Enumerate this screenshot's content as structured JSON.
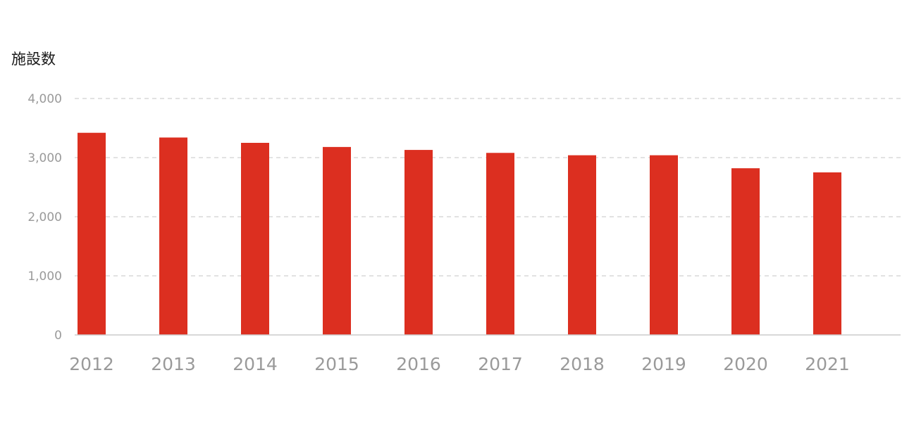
{
  "chart_data": {
    "type": "bar",
    "ylabel": "施設数",
    "xlabel": "",
    "title": "",
    "categories": [
      "2012",
      "2013",
      "2014",
      "2015",
      "2016",
      "2017",
      "2018",
      "2019",
      "2020",
      "2021"
    ],
    "series": [
      {
        "values": [
          3420,
          3340,
          3250,
          3180,
          3130,
          3080,
          3040,
          3040,
          2820,
          2750
        ]
      }
    ],
    "ylim": [
      0,
      4000
    ],
    "yticks": [
      0,
      1000,
      2000,
      3000,
      4000
    ],
    "ytick_labels": [
      "0",
      "1,000",
      "2,000",
      "3,000",
      "4,000"
    ],
    "grid": true,
    "legend": "none",
    "colors": {
      "bar": "#dc2f20",
      "grid": "#d9d9d9",
      "axis": "#cccccc",
      "tick_text": "#9a9a9a"
    }
  }
}
